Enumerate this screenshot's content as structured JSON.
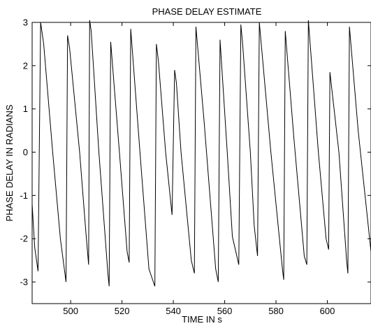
{
  "chart_data": {
    "type": "line",
    "title": "PHASE DELAY ESTIMATE",
    "xlabel": "TIME IN s",
    "ylabel": "PHASE DELAY IN RADIANS",
    "xlim": [
      485,
      617
    ],
    "ylim": [
      -3.5,
      3
    ],
    "xticks": [
      500,
      520,
      540,
      560,
      580,
      600
    ],
    "yticks": [
      -3,
      -2,
      -1,
      0,
      1,
      2,
      3
    ],
    "grid": false,
    "color": "#000000",
    "series": [
      {
        "x": [
          485.0,
          486.0,
          487.3,
          488.3,
          489.5,
          493.0,
          496.0,
          498.2,
          498.8,
          499.6,
          503.5,
          506.0,
          507.0,
          507.4,
          508.0,
          511.0,
          514.5,
          515.0,
          515.6,
          519.0,
          522.0,
          522.8,
          523.4,
          527.0,
          530.5,
          532.8,
          533.4,
          534.2,
          537.0,
          539.5,
          540.5,
          541.2,
          543.0,
          547.0,
          548.2,
          548.8,
          552.0,
          556.5,
          557.5,
          558.2,
          561.0,
          563.0,
          565.5,
          566.3,
          567.0,
          570.0,
          571.5,
          572.8,
          573.5,
          578.0,
          582.5,
          583.0,
          583.6,
          587.0,
          591.0,
          592.0,
          592.6,
          596.5,
          599.5,
          600.5,
          601.0,
          604.5,
          607.5,
          608.0,
          608.6,
          612.0,
          617.0
        ],
        "y": [
          -1.2,
          -2.2,
          -2.75,
          3.0,
          2.5,
          0.0,
          -2.0,
          -3.0,
          2.7,
          2.4,
          0.0,
          -1.9,
          -2.6,
          3.05,
          2.8,
          0.0,
          -2.8,
          -3.1,
          2.55,
          0.0,
          -2.3,
          -2.55,
          2.85,
          0.0,
          -2.7,
          -3.1,
          2.5,
          2.1,
          0.0,
          -1.45,
          1.9,
          1.6,
          0.0,
          -2.5,
          -2.8,
          2.9,
          0.7,
          -2.7,
          -3.0,
          2.6,
          0.0,
          -1.95,
          -2.6,
          2.95,
          2.5,
          0.0,
          -1.7,
          -2.4,
          3.0,
          0.0,
          -2.7,
          -2.95,
          2.8,
          0.3,
          -2.4,
          -2.6,
          3.05,
          0.0,
          -2.0,
          -2.25,
          1.85,
          0.0,
          -2.5,
          -2.8,
          2.9,
          0.5,
          -2.3
        ]
      }
    ]
  }
}
